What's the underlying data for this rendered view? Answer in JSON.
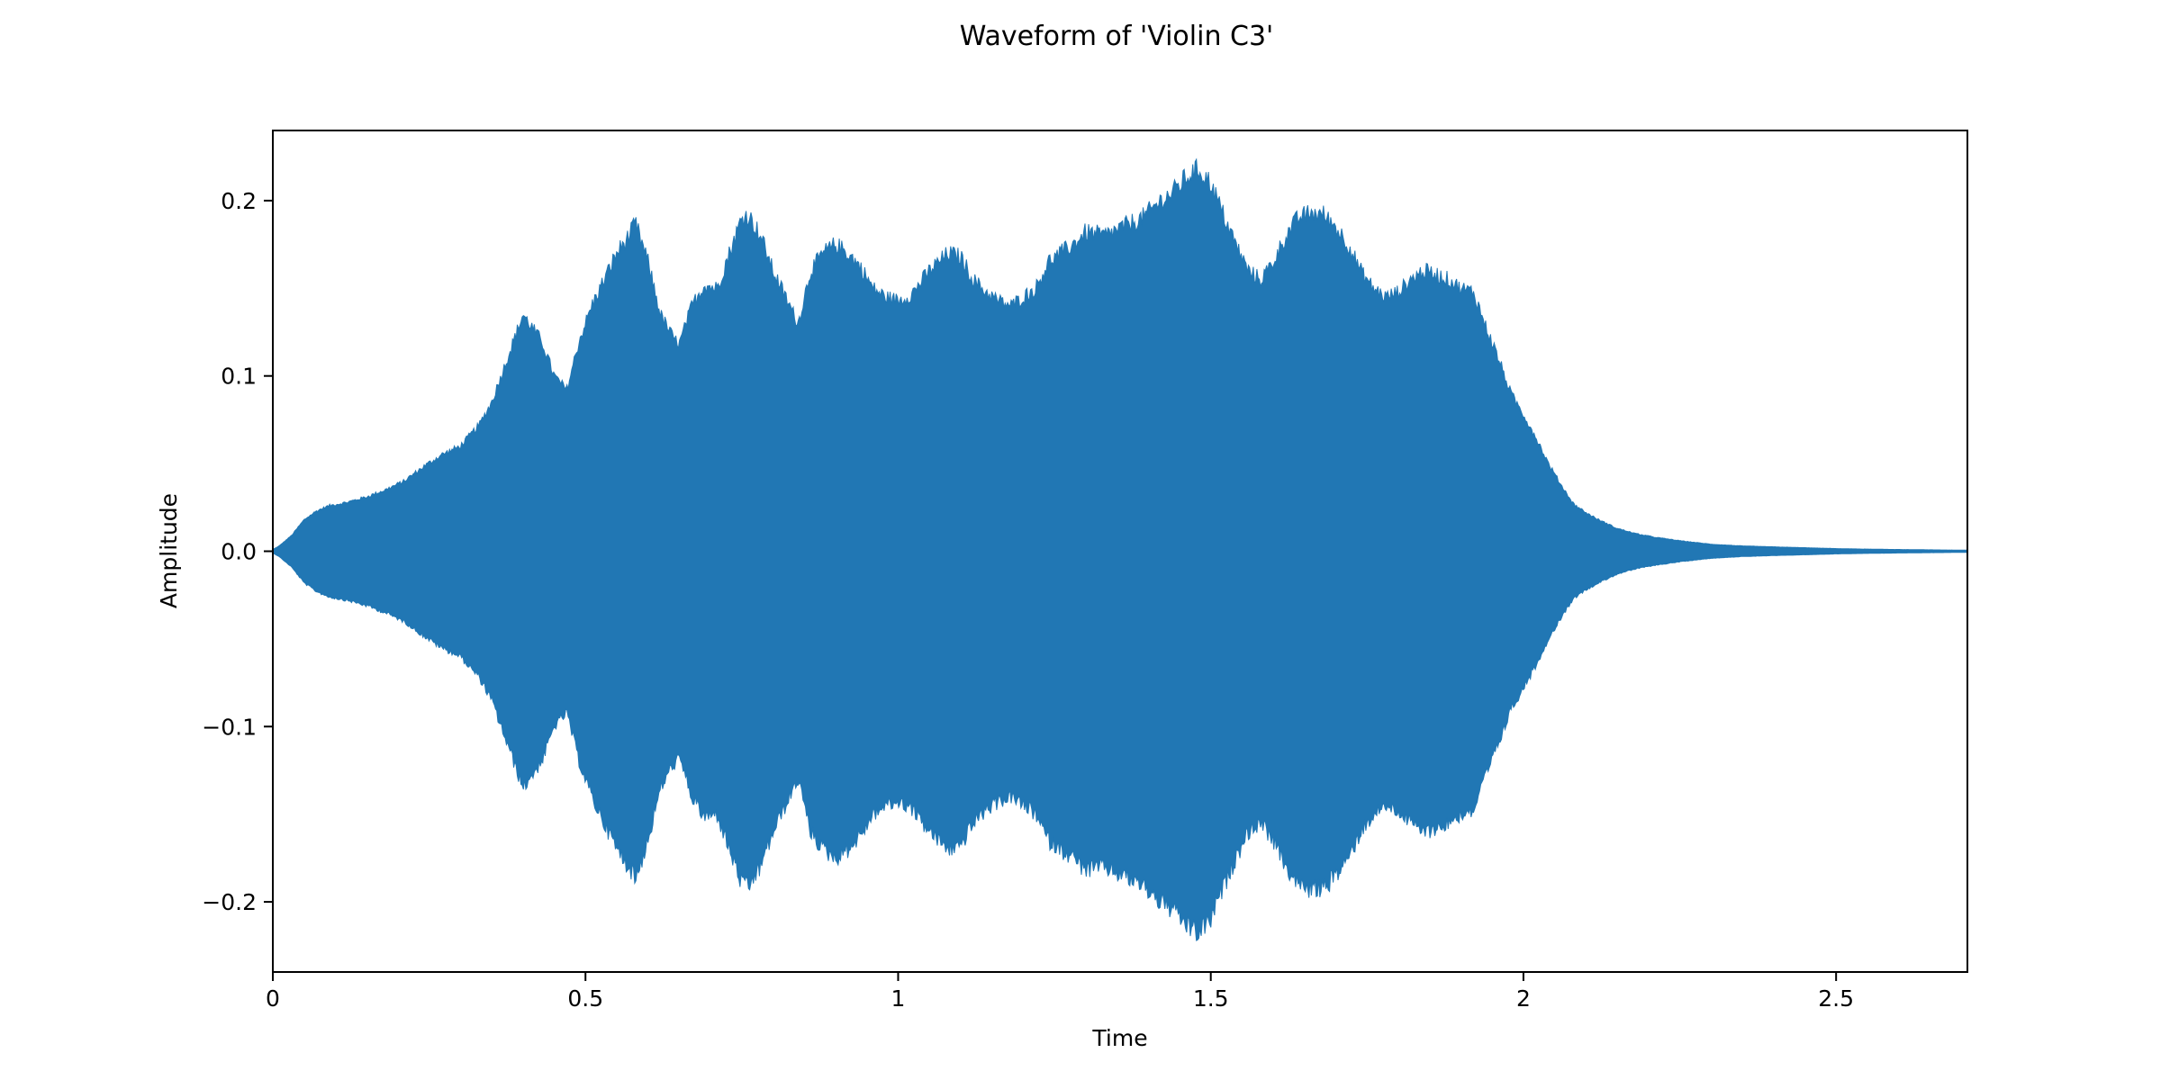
{
  "chart_data": {
    "type": "area",
    "title": "Waveform of 'Violin C3'",
    "xlabel": "Time",
    "ylabel": "Amplitude",
    "xlim": [
      0,
      2.71
    ],
    "ylim": [
      -0.24,
      0.24
    ],
    "x_ticks": [
      0,
      0.5,
      1,
      1.5,
      2,
      2.5
    ],
    "x_tick_labels": [
      "0",
      "0.5",
      "1",
      "1.5",
      "2",
      "2.5"
    ],
    "y_ticks": [
      -0.2,
      -0.1,
      0.0,
      0.1,
      0.2
    ],
    "y_tick_labels": [
      "−0.2",
      "−0.1",
      "0.0",
      "0.1",
      "0.2"
    ],
    "grid": false,
    "colors": {
      "waveform": "#2177b4",
      "axes": "#000000"
    },
    "series": [
      {
        "envelope_time": [
          0,
          0.01,
          0.03,
          0.05,
          0.07,
          0.09,
          0.12,
          0.15,
          0.18,
          0.21,
          0.24,
          0.27,
          0.3,
          0.33,
          0.35,
          0.37,
          0.39,
          0.4,
          0.41,
          0.43,
          0.45,
          0.47,
          0.49,
          0.51,
          0.53,
          0.55,
          0.57,
          0.58,
          0.6,
          0.62,
          0.64,
          0.65,
          0.67,
          0.69,
          0.71,
          0.73,
          0.75,
          0.76,
          0.78,
          0.8,
          0.82,
          0.84,
          0.86,
          0.88,
          0.9,
          0.92,
          0.94,
          0.96,
          0.98,
          1.0,
          1.02,
          1.05,
          1.08,
          1.1,
          1.12,
          1.14,
          1.16,
          1.18,
          1.2,
          1.22,
          1.24,
          1.26,
          1.28,
          1.3,
          1.33,
          1.36,
          1.39,
          1.42,
          1.44,
          1.46,
          1.48,
          1.5,
          1.52,
          1.54,
          1.56,
          1.58,
          1.6,
          1.62,
          1.64,
          1.66,
          1.68,
          1.7,
          1.72,
          1.74,
          1.76,
          1.78,
          1.8,
          1.82,
          1.84,
          1.86,
          1.88,
          1.9,
          1.92,
          1.94,
          1.96,
          1.98,
          2.0,
          2.02,
          2.04,
          2.06,
          2.08,
          2.1,
          2.12,
          2.15,
          2.18,
          2.21,
          2.25,
          2.3,
          2.35,
          2.4,
          2.45,
          2.5,
          2.55,
          2.6,
          2.65,
          2.71
        ],
        "envelope_amplitude": [
          0.001,
          0.003,
          0.009,
          0.018,
          0.023,
          0.026,
          0.028,
          0.031,
          0.035,
          0.04,
          0.048,
          0.055,
          0.06,
          0.072,
          0.085,
          0.105,
          0.125,
          0.135,
          0.13,
          0.12,
          0.1,
          0.092,
          0.12,
          0.14,
          0.155,
          0.17,
          0.18,
          0.187,
          0.165,
          0.135,
          0.122,
          0.118,
          0.14,
          0.152,
          0.15,
          0.17,
          0.19,
          0.192,
          0.18,
          0.16,
          0.145,
          0.13,
          0.16,
          0.17,
          0.175,
          0.17,
          0.162,
          0.15,
          0.145,
          0.143,
          0.146,
          0.16,
          0.17,
          0.168,
          0.155,
          0.148,
          0.143,
          0.14,
          0.145,
          0.15,
          0.165,
          0.17,
          0.175,
          0.182,
          0.18,
          0.185,
          0.19,
          0.2,
          0.205,
          0.213,
          0.218,
          0.21,
          0.192,
          0.175,
          0.16,
          0.155,
          0.165,
          0.18,
          0.19,
          0.193,
          0.192,
          0.185,
          0.175,
          0.16,
          0.15,
          0.145,
          0.148,
          0.155,
          0.16,
          0.158,
          0.155,
          0.15,
          0.148,
          0.128,
          0.11,
          0.09,
          0.078,
          0.065,
          0.05,
          0.038,
          0.027,
          0.022,
          0.018,
          0.013,
          0.01,
          0.008,
          0.006,
          0.004,
          0.003,
          0.0025,
          0.002,
          0.0015,
          0.0012,
          0.001,
          0.0008,
          0.0006
        ]
      }
    ]
  }
}
